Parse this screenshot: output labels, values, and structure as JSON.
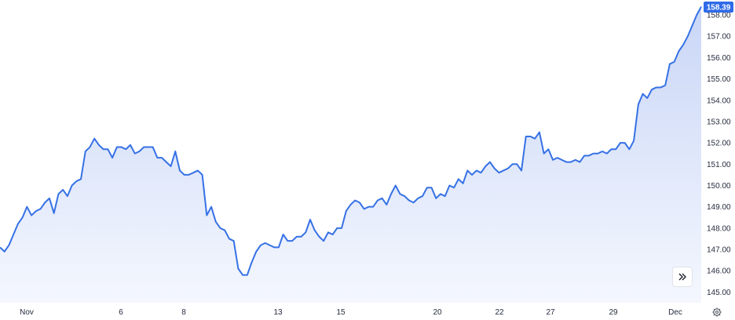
{
  "chart_data": {
    "type": "area",
    "x_ticks": [
      "Nov",
      "6",
      "8",
      "13",
      "15",
      "20",
      "22",
      "27",
      "29",
      "Dec"
    ],
    "y_ticks": [
      "158.00",
      "157.00",
      "156.00",
      "155.00",
      "154.00",
      "153.00",
      "152.00",
      "151.00",
      "150.00",
      "149.00",
      "148.00",
      "147.00",
      "146.00",
      "145.00"
    ],
    "ylim": [
      144.5,
      158.7
    ],
    "last_price": "158.39",
    "values": [
      147.1,
      146.9,
      147.2,
      147.7,
      148.2,
      148.5,
      149.0,
      148.6,
      148.8,
      148.9,
      149.2,
      149.4,
      148.7,
      149.6,
      149.8,
      149.5,
      150.0,
      150.2,
      150.3,
      151.6,
      151.8,
      152.2,
      151.9,
      151.7,
      151.7,
      151.3,
      151.8,
      151.8,
      151.7,
      151.9,
      151.5,
      151.6,
      151.8,
      151.8,
      151.8,
      151.3,
      151.3,
      151.1,
      150.9,
      151.6,
      150.7,
      150.5,
      150.5,
      150.6,
      150.7,
      150.5,
      148.6,
      149.0,
      148.3,
      148.0,
      147.9,
      147.5,
      147.4,
      146.1,
      145.8,
      145.8,
      146.4,
      146.9,
      147.2,
      147.3,
      147.2,
      147.1,
      147.1,
      147.7,
      147.4,
      147.4,
      147.6,
      147.6,
      147.8,
      148.4,
      147.9,
      147.6,
      147.4,
      147.8,
      147.7,
      148.0,
      148.0,
      148.8,
      149.1,
      149.3,
      149.2,
      148.9,
      149.0,
      149.0,
      149.3,
      149.4,
      149.1,
      149.6,
      150.0,
      149.6,
      149.5,
      149.3,
      149.2,
      149.4,
      149.5,
      149.9,
      149.9,
      149.4,
      149.6,
      149.5,
      150.0,
      149.9,
      150.3,
      150.1,
      150.7,
      150.5,
      150.7,
      150.6,
      150.9,
      151.1,
      150.8,
      150.6,
      150.7,
      150.8,
      151.0,
      151.0,
      150.7,
      152.3,
      152.3,
      152.2,
      152.5,
      151.5,
      151.7,
      151.2,
      151.3,
      151.2,
      151.1,
      151.1,
      151.2,
      151.1,
      151.4,
      151.4,
      151.5,
      151.5,
      151.6,
      151.5,
      151.7,
      151.7,
      152.0,
      152.0,
      151.7,
      152.1,
      153.8,
      154.3,
      154.1,
      154.5,
      154.6,
      154.6,
      154.7,
      155.7,
      155.8,
      156.3,
      156.6,
      157.0,
      157.5,
      158.0,
      158.39
    ],
    "colors": {
      "line": "#3671e5",
      "fill_top": "#c9d6f6",
      "fill_bottom": "#f4f7fe",
      "badge": "#2f6be9",
      "axis_text": "#262b3e"
    },
    "grid": false
  },
  "controls": {
    "nav_icon": "double-chevron-right-icon",
    "settings_icon": "gear-icon"
  }
}
